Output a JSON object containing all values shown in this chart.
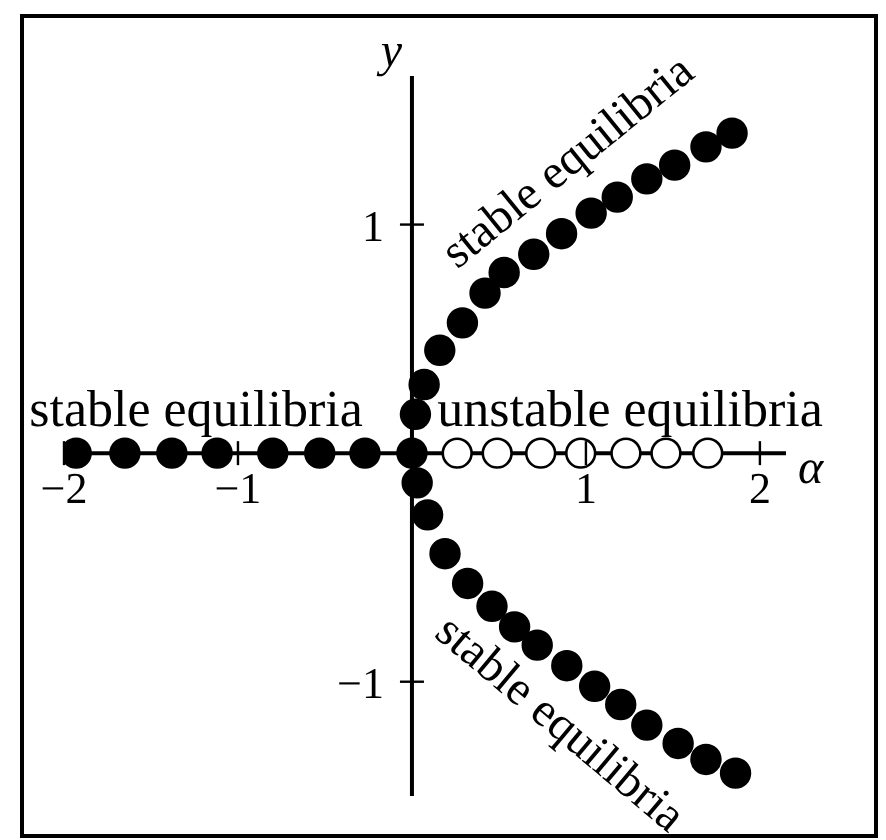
{
  "chart_data": {
    "type": "scatter",
    "xlabel": "α",
    "ylabel": "y",
    "xlim": [
      -2,
      2.15
    ],
    "ylim": [
      -1.5,
      1.65
    ],
    "xticks": [
      {
        "value": -2,
        "label": "−2"
      },
      {
        "value": -1,
        "label": "−1"
      },
      1,
      2
    ],
    "yticks": [
      {
        "value": -1,
        "label": "−1"
      },
      1
    ],
    "marker": "circle",
    "series": [
      {
        "color": "#000000",
        "x": [
          -1.93,
          -1.65,
          -1.38,
          -1.12,
          -0.8,
          -0.53,
          -0.27,
          0
        ],
        "values": [
          0,
          0,
          0,
          0,
          0,
          0,
          0,
          0
        ]
      },
      {
        "color": "#ffffff",
        "x": [
          0.26,
          0.49,
          0.74,
          0.97,
          1.23,
          1.46,
          1.7
        ],
        "values": [
          0,
          0,
          0,
          0,
          0,
          0,
          0
        ]
      },
      {
        "color": "#000000",
        "x": [
          0.02,
          0.07,
          0.16,
          0.29,
          0.42,
          0.53,
          0.7,
          0.86,
          1.03,
          1.18,
          1.35,
          1.51,
          1.69,
          1.84
        ],
        "values": [
          0.17,
          0.3,
          0.45,
          0.57,
          0.7,
          0.79,
          0.87,
          0.96,
          1.05,
          1.12,
          1.2,
          1.26,
          1.34,
          1.4
        ]
      },
      {
        "color": "#000000",
        "x": [
          0.03,
          0.09,
          0.19,
          0.32,
          0.46,
          0.59,
          0.72,
          0.89,
          1.05,
          1.2,
          1.35,
          1.53,
          1.69,
          1.86
        ],
        "values": [
          -0.13,
          -0.27,
          -0.44,
          -0.57,
          -0.67,
          -0.76,
          -0.84,
          -0.93,
          -1.02,
          -1.1,
          -1.19,
          -1.27,
          -1.34,
          -1.4
        ]
      }
    ],
    "annotations": [
      "stable equilibria",
      "unstable equilibria",
      "stable equilibria",
      "stable equilibria"
    ]
  }
}
